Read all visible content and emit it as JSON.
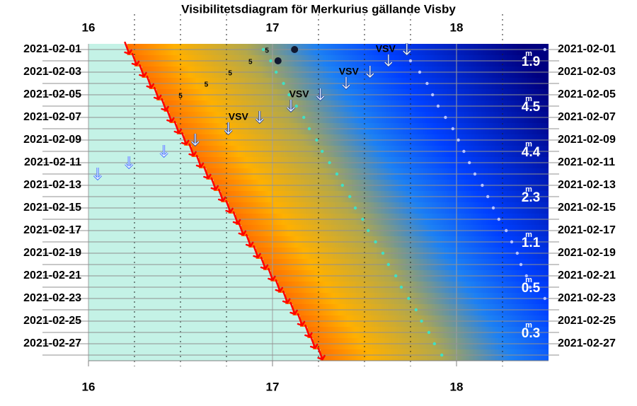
{
  "chart_data": {
    "type": "visibility",
    "title": "Visibilitetsdiagram för Merkurius gällande Visby",
    "categories": [
      "2021-02-01",
      null,
      "2021-02-03",
      null,
      "2021-02-05",
      null,
      "2021-02-07",
      null,
      "2021-02-09",
      null,
      "2021-02-11",
      null,
      "2021-02-13",
      null,
      "2021-02-15",
      null,
      "2021-02-17",
      null,
      "2021-02-19",
      null,
      "2021-02-21",
      null,
      "2021-02-23",
      null,
      "2021-02-25",
      null,
      "2021-02-27",
      null
    ],
    "xlim": [
      16,
      18.5
    ],
    "xticks": [
      16,
      17,
      18
    ],
    "xminorticks": [
      16.25,
      16.5,
      16.75,
      17.25,
      17.5,
      17.75,
      18.25
    ],
    "grid": true,
    "background_color": "#c4f2e6",
    "series": [
      {
        "marker": "arrow-red",
        "color": "#ff0000",
        "values": [
          16.21,
          16.25,
          16.29,
          16.33,
          16.37,
          16.41,
          16.44,
          16.48,
          16.52,
          16.56,
          16.6,
          16.64,
          16.68,
          16.72,
          16.76,
          16.8,
          16.83,
          16.87,
          16.91,
          16.95,
          16.99,
          17.03,
          17.07,
          17.11,
          17.15,
          17.19,
          17.22,
          17.26
        ]
      },
      {
        "marker": "arrow-down",
        "color": "#eef6ff",
        "values": [
          17.73,
          17.63,
          17.53,
          17.4,
          17.26,
          17.1,
          16.93,
          16.76,
          16.58,
          16.41,
          16.22,
          16.05,
          null,
          null,
          null,
          null,
          null,
          null,
          null,
          null,
          null,
          null,
          null,
          null,
          null,
          null,
          null,
          null
        ],
        "labels": [
          "VSV",
          null,
          "VSV",
          null,
          "VSV",
          null,
          "VSV",
          null,
          null,
          null,
          null,
          null,
          null,
          null,
          null,
          null,
          null,
          null,
          null,
          null,
          null,
          null,
          null,
          null,
          null,
          null,
          null,
          null
        ]
      },
      {
        "marker": "dot",
        "color": "#40e0c4",
        "values": [
          16.95,
          16.99,
          17.02,
          17.06,
          17.09,
          17.13,
          17.17,
          17.2,
          17.24,
          17.27,
          17.31,
          17.35,
          17.38,
          17.42,
          17.45,
          17.49,
          17.52,
          17.56,
          17.6,
          17.63,
          17.67,
          17.7,
          17.74,
          17.78,
          17.81,
          17.85,
          17.88,
          17.92
        ]
      },
      {
        "marker": "dot",
        "color": "#b8c4ff",
        "values": [
          18.48,
          17.75,
          17.8,
          17.84,
          17.87,
          17.9,
          17.94,
          17.98,
          18.01,
          18.04,
          18.07,
          18.1,
          18.14,
          18.17,
          18.2,
          18.23,
          18.27,
          18.3,
          18.33,
          18.35,
          18.38,
          18.4,
          18.48,
          null,
          null,
          null,
          null,
          null
        ]
      },
      {
        "marker": "big-dot",
        "color": "#101830",
        "values": [
          17.12,
          17.03,
          null,
          null,
          null,
          null,
          null,
          null,
          null,
          null,
          null,
          null,
          null,
          null,
          null,
          null,
          null,
          null,
          null,
          null,
          null,
          null,
          null,
          null,
          null,
          null,
          null,
          null
        ]
      },
      {
        "marker": "text",
        "color": "#000000",
        "values": [
          16.97,
          16.88,
          16.77,
          16.64,
          16.5,
          null,
          null,
          null,
          null,
          null,
          null,
          null,
          null,
          null,
          null,
          null,
          null,
          null,
          null,
          null,
          null,
          null,
          null,
          null,
          null,
          null,
          null,
          null
        ],
        "labels": [
          "5",
          "5",
          "5",
          "5",
          "5",
          null,
          null,
          null,
          null,
          null,
          null,
          null,
          null,
          null,
          null,
          null,
          null,
          null,
          null,
          null,
          null,
          null,
          null,
          null,
          null,
          null,
          null,
          null
        ]
      }
    ],
    "magnitude_unit": "m",
    "magnitude_labels": [
      null,
      "1.9",
      null,
      null,
      null,
      "4.5",
      null,
      null,
      null,
      "4.4",
      null,
      null,
      null,
      "2.3",
      null,
      null,
      null,
      "1.1",
      null,
      null,
      null,
      "0.5",
      null,
      null,
      null,
      "0.3",
      null,
      null
    ]
  }
}
